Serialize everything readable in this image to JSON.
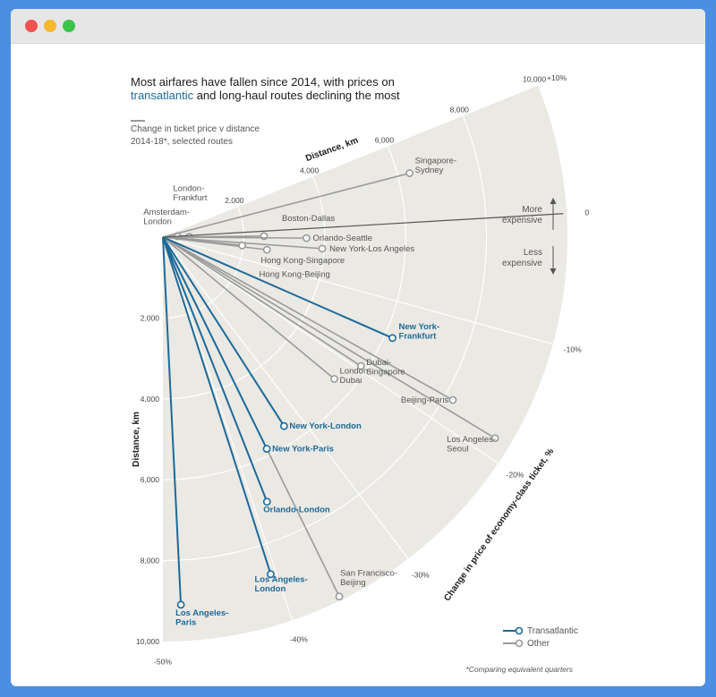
{
  "window": {
    "controls": [
      "close",
      "minimize",
      "maximize"
    ]
  },
  "title_line1": "Most airfares have fallen since 2014, with prices on",
  "title_line2_highlight": "transatlantic",
  "title_line2_rest": " and long-haul routes declining the most",
  "subtitle": "Change in ticket price v distance",
  "subtitle2": "2014-18*, selected routes",
  "footnote": "*Comparing equivalent quarters",
  "legend": {
    "transatlantic": "Transatlantic",
    "other": "Other"
  },
  "annotations": {
    "more_line1": "More",
    "more_line2": "expensive",
    "less_line1": "Less",
    "less_line2": "expensive"
  },
  "colors": {
    "transatlantic": "#1c6a9a",
    "other": "#9a9a9a",
    "fan_fill": "#ebe9e3",
    "grid": "#ffffff"
  },
  "chart_data": {
    "type": "scatter",
    "coordinate_system": "polar",
    "radial_axis": {
      "label": "Distance, km",
      "range": [
        0,
        10000
      ],
      "ticks": [
        "2,000",
        "4,000",
        "6,000",
        "8,000",
        "10,000"
      ]
    },
    "angular_axis": {
      "label": "Change in price of economy-class ticket, %",
      "range": [
        -50,
        10
      ],
      "ticks": [
        "+10%",
        "0",
        "-10%",
        "-20%",
        "-30%",
        "-40%",
        "-50%"
      ]
    },
    "series": [
      {
        "name": "Transatlantic",
        "points": [
          {
            "route": "New York-Frankfurt",
            "distance": 6200,
            "change": -14.5
          },
          {
            "route": "New York-London",
            "distance": 5550,
            "change": -32.5
          },
          {
            "route": "New York-Paris",
            "distance": 5830,
            "change": -36.0
          },
          {
            "route": "Orlando-London",
            "distance": 7030,
            "change": -38.5
          },
          {
            "route": "Los Angeles-London",
            "distance": 8750,
            "change": -40.5
          },
          {
            "route": "Los Angeles-Paris",
            "distance": 9100,
            "change": -48.5
          }
        ]
      },
      {
        "name": "Other",
        "points": [
          {
            "route": "Amsterdam-London",
            "distance": 360,
            "change": 0
          },
          {
            "route": "London-Frankfurt",
            "distance": 650,
            "change": -1.5
          },
          {
            "route": "Boston-Dallas",
            "distance": 2500,
            "change": -1.5
          },
          {
            "route": "Orlando-Seattle",
            "distance": 3550,
            "change": -2.0
          },
          {
            "route": "New York-Los Angeles",
            "distance": 3950,
            "change": -4.0
          },
          {
            "route": "Hong Kong-Singapore",
            "distance": 2590,
            "change": -5.5
          },
          {
            "route": "Hong Kong-Beijing",
            "distance": 1970,
            "change": -5.0
          },
          {
            "route": "Singapore-Sydney",
            "distance": 6300,
            "change": 6.0
          },
          {
            "route": "London-Dubai",
            "distance": 5500,
            "change": -23.0
          },
          {
            "route": "Dubai-Singapore",
            "distance": 5840,
            "change": -19.5
          },
          {
            "route": "Beijing-Paris",
            "distance": 8220,
            "change": -17.5
          },
          {
            "route": "Los Angeles-Seoul",
            "distance": 9600,
            "change": -18.5
          },
          {
            "route": "San Francisco-Beijing",
            "distance": 9900,
            "change": -36.0
          }
        ]
      }
    ]
  }
}
